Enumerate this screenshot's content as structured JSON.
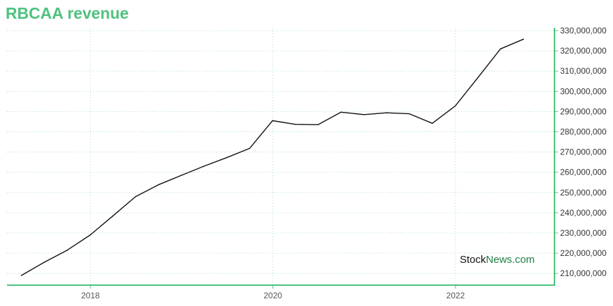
{
  "colors": {
    "title": "#4fc27f",
    "axis": "#4fc27f",
    "grid": "#a8dcc0",
    "line": "#111111",
    "watermark_dark": "#111111",
    "watermark_green": "#1e7e46"
  },
  "watermark": {
    "part1": "Stock",
    "part2": "News.com"
  },
  "chart_data": {
    "type": "line",
    "title": "RBCAA revenue",
    "xlabel": "",
    "ylabel": "",
    "x_ticks": [
      "2018",
      "2020",
      "2022"
    ],
    "y_ticks": [
      "210,000,000",
      "220,000,000",
      "230,000,000",
      "240,000,000",
      "250,000,000",
      "260,000,000",
      "270,000,000",
      "280,000,000",
      "290,000,000",
      "300,000,000",
      "310,000,000",
      "320,000,000",
      "330,000,000"
    ],
    "xlim": [
      "2017-02-01",
      "2023-02-01"
    ],
    "ylim": [
      204200000,
      331400000
    ],
    "grid": true,
    "y_axis_side": "right",
    "series": [
      {
        "x": [
          "2017-03-31",
          "2017-06-30",
          "2017-09-30",
          "2017-12-31",
          "2018-03-31",
          "2018-06-30",
          "2018-09-30",
          "2018-12-31",
          "2019-03-31",
          "2019-06-30",
          "2019-09-30",
          "2019-12-31",
          "2020-03-31",
          "2020-06-30",
          "2020-09-30",
          "2020-12-31",
          "2021-03-31",
          "2021-06-30",
          "2021-09-30",
          "2021-12-31",
          "2022-03-31",
          "2022-06-30",
          "2022-09-30"
        ],
        "values": [
          209000000,
          215500000,
          221500000,
          229000000,
          238300000,
          247900000,
          253800000,
          258500000,
          263000000,
          267200000,
          271800000,
          285500000,
          283700000,
          283500000,
          289700000,
          288500000,
          289400000,
          288900000,
          284200000,
          292800000,
          306700000,
          321000000,
          325800000
        ]
      }
    ]
  }
}
